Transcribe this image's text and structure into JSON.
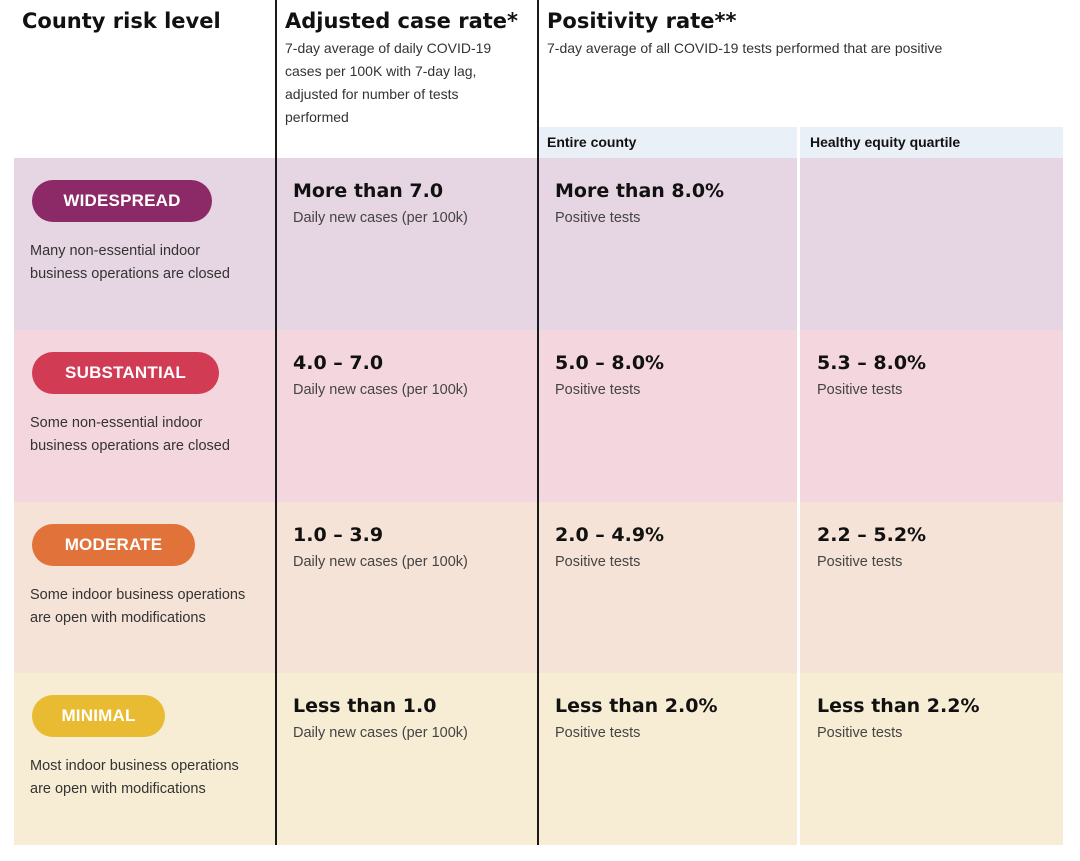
{
  "headers": {
    "risk": {
      "title": "County risk level"
    },
    "case_rate": {
      "title": "Adjusted case rate*",
      "lines": [
        "7-day average of daily COVID-19",
        "cases per 100K with 7-day lag,",
        "adjusted for number of tests",
        "performed"
      ]
    },
    "positivity": {
      "title": "Positivity rate**",
      "subtitle": "7-day average of all COVID-19 tests performed that are positive",
      "sub_entire": "Entire county",
      "sub_equity": "Healthy equity quartile"
    }
  },
  "rows": [
    {
      "level": "WIDESPREAD",
      "pill_color": "#8b2a67",
      "bg": "#e6d5e2",
      "desc1": "Many non-essential indoor",
      "desc2": "business operations are closed",
      "case_value": "More than 7.0",
      "case_unit": "Daily new cases (per 100k)",
      "entire_value": "More than 8.0%",
      "entire_unit": "Positive tests",
      "equity_value": "",
      "equity_unit": ""
    },
    {
      "level": "SUBSTANTIAL",
      "pill_color": "#d23b54",
      "bg": "#f4d7de",
      "desc1": "Some non-essential indoor",
      "desc2": "business operations are closed",
      "case_value": "4.0 – 7.0",
      "case_unit": "Daily new cases (per 100k)",
      "entire_value": "5.0 – 8.0%",
      "entire_unit": "Positive tests",
      "equity_value": "5.3 – 8.0%",
      "equity_unit": "Positive tests"
    },
    {
      "level": "MODERATE",
      "pill_color": "#e0723a",
      "bg": "#f5e3d8",
      "desc1": "Some indoor business operations",
      "desc2": "are open with modifications",
      "case_value": "1.0 – 3.9",
      "case_unit": "Daily new cases (per 100k)",
      "entire_value": "2.0 – 4.9%",
      "entire_unit": "Positive tests",
      "equity_value": "2.2 – 5.2%",
      "equity_unit": "Positive tests"
    },
    {
      "level": "MINIMAL",
      "pill_color": "#e8bb32",
      "bg": "#f7edd4",
      "desc1": "Most indoor business operations",
      "desc2": "are open with modifications",
      "case_value": "Less than 1.0",
      "case_unit": "Daily new cases (per 100k)",
      "entire_value": "Less than 2.0%",
      "entire_unit": "Positive tests",
      "equity_value": "Less than 2.2%",
      "equity_unit": "Positive tests"
    }
  ]
}
